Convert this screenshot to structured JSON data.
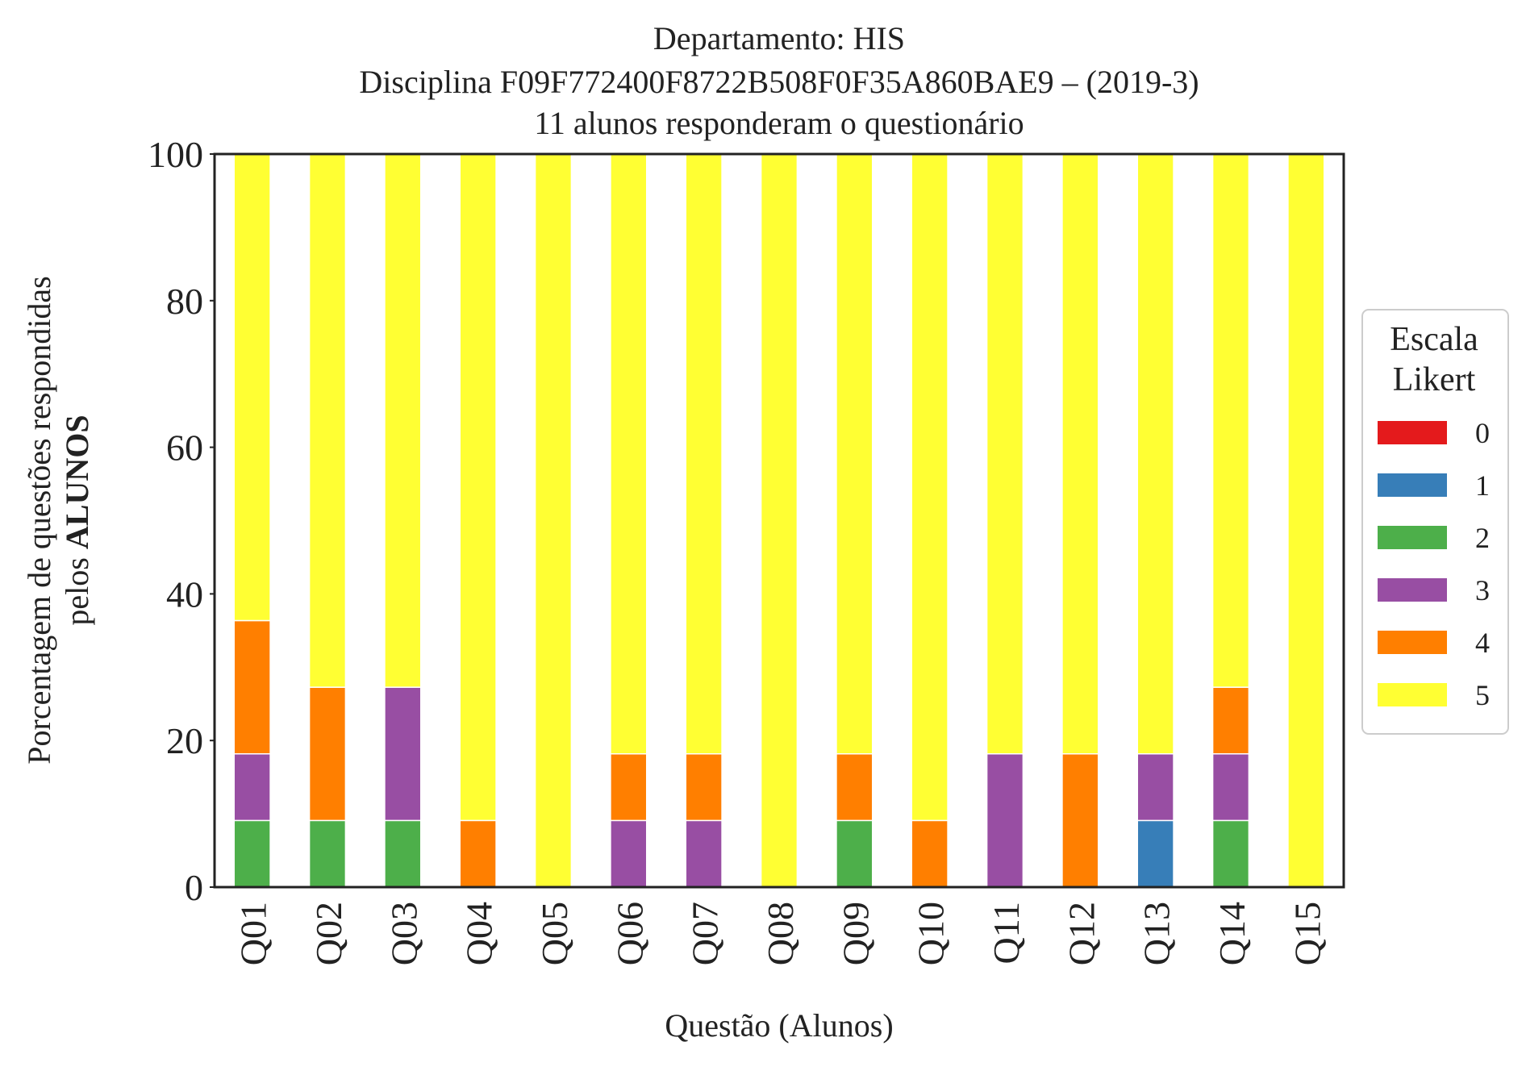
{
  "chart_data": {
    "type": "bar",
    "stacked": true,
    "title_lines": [
      "Departamento: HIS",
      "Disciplina F09F772400F8722B508F0F35A860BAE9 – (2019-3)",
      "11 alunos responderam o questionário"
    ],
    "xlabel": "Questão (Alunos)",
    "ylabel_line1": "Porcentagem de questões respondidas",
    "ylabel_line2_prefix": "pelos ",
    "ylabel_line2_bold": "ALUNOS",
    "ylim": [
      0,
      100
    ],
    "yticks": [
      0,
      20,
      40,
      60,
      80,
      100
    ],
    "grid": false,
    "legend_position": "right",
    "legend_title_lines": [
      "Escala",
      "Likert"
    ],
    "categories": [
      "Q01",
      "Q02",
      "Q03",
      "Q04",
      "Q05",
      "Q06",
      "Q07",
      "Q08",
      "Q09",
      "Q10",
      "Q11",
      "Q12",
      "Q13",
      "Q14",
      "Q15"
    ],
    "series": [
      {
        "name": "0",
        "color": "#e41a1c",
        "values": [
          0,
          0,
          0,
          0,
          0,
          0,
          0,
          0,
          0,
          0,
          0,
          0,
          0,
          0,
          0
        ]
      },
      {
        "name": "1",
        "color": "#377eb8",
        "values": [
          0,
          0,
          0,
          0,
          0,
          0,
          0,
          0,
          0,
          0,
          0,
          0,
          9.09,
          0,
          0
        ]
      },
      {
        "name": "2",
        "color": "#4daf4a",
        "values": [
          9.09,
          9.09,
          9.09,
          0,
          0,
          0,
          0,
          0,
          9.09,
          0,
          0,
          0,
          0,
          9.09,
          0
        ]
      },
      {
        "name": "3",
        "color": "#984ea3",
        "values": [
          9.09,
          0,
          18.18,
          0,
          0,
          9.09,
          9.09,
          0,
          0,
          0,
          18.18,
          0,
          9.09,
          9.09,
          0
        ]
      },
      {
        "name": "4",
        "color": "#ff7f00",
        "values": [
          18.18,
          18.18,
          0,
          9.09,
          0,
          9.09,
          9.09,
          0,
          9.09,
          9.09,
          0,
          18.18,
          0,
          9.09,
          0
        ]
      },
      {
        "name": "5",
        "color": "#ffff33",
        "values": [
          63.64,
          72.73,
          72.73,
          90.91,
          100,
          81.82,
          81.82,
          100,
          81.82,
          90.91,
          81.82,
          81.82,
          81.82,
          72.73,
          100
        ]
      }
    ]
  }
}
